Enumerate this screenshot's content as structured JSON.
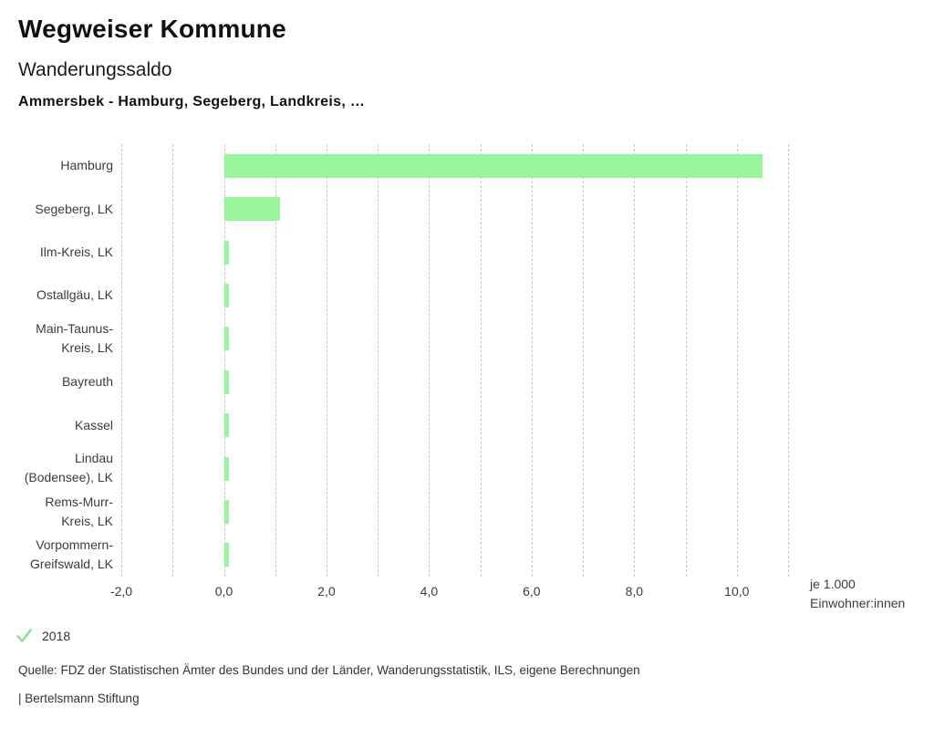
{
  "header": {
    "title": "Wegweiser Kommune",
    "subtitle": "Wanderungssaldo",
    "selection": "Ammersbek - Hamburg, Segeberg, Landkreis, …"
  },
  "chart_data": {
    "type": "bar",
    "orientation": "horizontal",
    "title": "Wanderungssaldo",
    "categories": [
      "Hamburg",
      "Segeberg, LK",
      "Ilm-Kreis, LK",
      "Ostallgäu, LK",
      "Main-Taunus-Kreis, LK",
      "Bayreuth",
      "Kassel",
      "Lindau (Bodensee), LK",
      "Rems-Murr-Kreis, LK",
      "Vorpommern-Greifswald, LK"
    ],
    "label_lines": [
      [
        "Hamburg"
      ],
      [
        "Segeberg, LK"
      ],
      [
        "Ilm-Kreis, LK"
      ],
      [
        "Ostallgäu, LK"
      ],
      [
        "Main-Taunus-",
        "Kreis, LK"
      ],
      [
        "Bayreuth"
      ],
      [
        "Kassel"
      ],
      [
        "Lindau",
        "(Bodensee), LK"
      ],
      [
        "Rems-Murr-",
        "Kreis, LK"
      ],
      [
        "Vorpommern-",
        "Greifswald, LK"
      ]
    ],
    "series": [
      {
        "name": "2018",
        "values": [
          10.5,
          1.1,
          0.1,
          0.1,
          0.1,
          0.1,
          0.1,
          0.1,
          0.1,
          0.1
        ]
      }
    ],
    "xlim": [
      -2,
      11
    ],
    "grid_step": 1,
    "grid": true,
    "xticks": [
      -2,
      0,
      2,
      4,
      6,
      8,
      10
    ],
    "xtick_labels": [
      "-2,0",
      "0,0",
      "2,0",
      "4,0",
      "6,0",
      "8,0",
      "10,0"
    ],
    "unit_lines": [
      "je 1.000",
      "Einwohner:innen"
    ],
    "bar_color": "#98f59b",
    "legend_position": "bottom-left"
  },
  "legend": {
    "year": "2018",
    "check_icon": "checkmark-icon",
    "check_color": "#8ae48c"
  },
  "footer": {
    "source": "Quelle: FDZ der Statistischen Ämter des Bundes und der Länder, Wanderungsstatistik, ILS, eigene Berechnungen",
    "attribution": "| Bertelsmann Stiftung"
  },
  "colors": {
    "bar": "#98f59b",
    "check": "#8ae48c",
    "grid": "#c6c6c6",
    "title_text": "#111111",
    "label_text": "#3c3c3c",
    "footer_text": "#333333"
  }
}
